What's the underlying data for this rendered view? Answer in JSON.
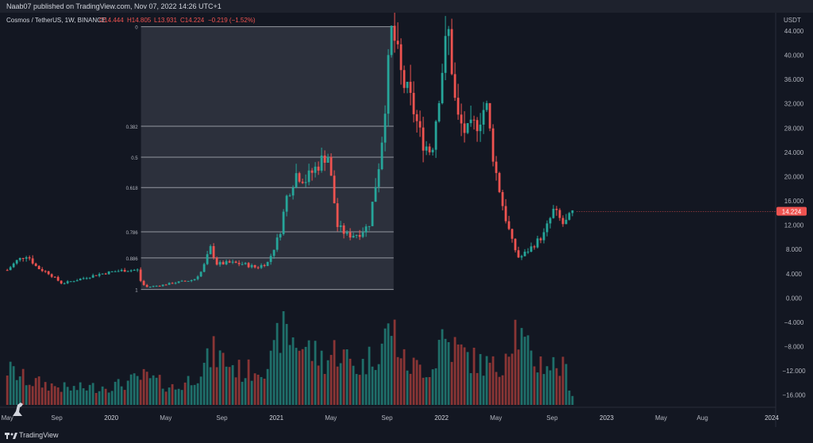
{
  "header": {
    "published": "Naab07 published on TradingView.com, Nov 07, 2022 14:26 UTC+1"
  },
  "footer": {
    "brand": "TradingView"
  },
  "colors": {
    "up": "#26a69a",
    "down": "#ef5350",
    "up_vol": "#1f6f6a",
    "down_vol": "#8a3535",
    "price_tag": "#ef5350",
    "fib_fill": "#2a2e39"
  },
  "chart_data": {
    "type": "candlestick",
    "symbol_line": {
      "symbol": "Cosmos / TetherUS, 1W, BINANCE",
      "o": "O14.444",
      "h": "H14.805",
      "l": "L13.931",
      "c": "C14.224",
      "chg": "−0.219 (−1.52%)"
    },
    "currency": "USDT",
    "last_price": 14.224,
    "last_price_label": "14.224",
    "y_axis": {
      "range": [
        -18,
        47
      ],
      "ticks": [
        44,
        40,
        36,
        32,
        28,
        24,
        20,
        16,
        12,
        8,
        4,
        0,
        -4,
        -8,
        -12,
        -16
      ],
      "tick_labels": [
        "44.000",
        "40.000",
        "36.000",
        "32.000",
        "28.000",
        "24.000",
        "20.000",
        "16.000",
        "12.000",
        "8.000",
        "4.000",
        "0.000",
        "−4.000",
        "−8.000",
        "−12.000",
        "−16.000"
      ]
    },
    "x_axis": {
      "range": [
        2019.35,
        2024.0
      ],
      "ticks": [
        {
          "x": 2019.37,
          "label": "May"
        },
        {
          "x": 2019.67,
          "label": "Sep"
        },
        {
          "x": 2020.0,
          "label": "2020"
        },
        {
          "x": 2020.33,
          "label": "May"
        },
        {
          "x": 2020.67,
          "label": "Sep"
        },
        {
          "x": 2021.0,
          "label": "2021"
        },
        {
          "x": 2021.33,
          "label": "May"
        },
        {
          "x": 2021.67,
          "label": "Sep"
        },
        {
          "x": 2022.0,
          "label": "2022"
        },
        {
          "x": 2022.33,
          "label": "May"
        },
        {
          "x": 2022.67,
          "label": "Sep"
        },
        {
          "x": 2023.0,
          "label": "2023"
        },
        {
          "x": 2023.33,
          "label": "May"
        },
        {
          "x": 2023.58,
          "label": "Aug"
        },
        {
          "x": 2024.0,
          "label": "2024"
        }
      ]
    },
    "fibonacci": {
      "x_start": 2020.18,
      "x_end": 2021.71,
      "levels": [
        {
          "ratio": "0",
          "price": 44.7
        },
        {
          "ratio": "0.382",
          "price": 28.3
        },
        {
          "ratio": "0.5",
          "price": 23.2
        },
        {
          "ratio": "0.618",
          "price": 18.2
        },
        {
          "ratio": "0.786",
          "price": 10.9
        },
        {
          "ratio": "0.886",
          "price": 6.6
        },
        {
          "ratio": "1",
          "price": 1.4
        }
      ]
    },
    "price_path": [
      {
        "x": 2019.37,
        "y": 4.6
      },
      {
        "x": 2019.43,
        "y": 6.2
      },
      {
        "x": 2019.49,
        "y": 7.1
      },
      {
        "x": 2019.55,
        "y": 5.0
      },
      {
        "x": 2019.62,
        "y": 4.1
      },
      {
        "x": 2019.7,
        "y": 2.4
      },
      {
        "x": 2019.78,
        "y": 2.9
      },
      {
        "x": 2019.86,
        "y": 3.5
      },
      {
        "x": 2019.94,
        "y": 4.0
      },
      {
        "x": 2020.02,
        "y": 4.4
      },
      {
        "x": 2020.1,
        "y": 4.6
      },
      {
        "x": 2020.16,
        "y": 4.6
      },
      {
        "x": 2020.18,
        "y": 2.6
      },
      {
        "x": 2020.21,
        "y": 1.8
      },
      {
        "x": 2020.3,
        "y": 2.1
      },
      {
        "x": 2020.4,
        "y": 2.6
      },
      {
        "x": 2020.5,
        "y": 3.0
      },
      {
        "x": 2020.55,
        "y": 4.5
      },
      {
        "x": 2020.6,
        "y": 8.3
      },
      {
        "x": 2020.64,
        "y": 5.6
      },
      {
        "x": 2020.72,
        "y": 5.8
      },
      {
        "x": 2020.8,
        "y": 5.6
      },
      {
        "x": 2020.88,
        "y": 5.0
      },
      {
        "x": 2020.95,
        "y": 5.9
      },
      {
        "x": 2021.02,
        "y": 10.6
      },
      {
        "x": 2021.06,
        "y": 16.5
      },
      {
        "x": 2021.12,
        "y": 20.5
      },
      {
        "x": 2021.18,
        "y": 19.5
      },
      {
        "x": 2021.24,
        "y": 21.5
      },
      {
        "x": 2021.31,
        "y": 24.0
      },
      {
        "x": 2021.37,
        "y": 11.8
      },
      {
        "x": 2021.43,
        "y": 10.3
      },
      {
        "x": 2021.5,
        "y": 10.6
      },
      {
        "x": 2021.56,
        "y": 12.0
      },
      {
        "x": 2021.63,
        "y": 23.6
      },
      {
        "x": 2021.7,
        "y": 44.7
      },
      {
        "x": 2021.76,
        "y": 36.0
      },
      {
        "x": 2021.82,
        "y": 32.0
      },
      {
        "x": 2021.88,
        "y": 26.0
      },
      {
        "x": 2021.94,
        "y": 24.0
      },
      {
        "x": 2022.0,
        "y": 37.0
      },
      {
        "x": 2022.04,
        "y": 44.5
      },
      {
        "x": 2022.09,
        "y": 30.0
      },
      {
        "x": 2022.15,
        "y": 27.0
      },
      {
        "x": 2022.22,
        "y": 29.0
      },
      {
        "x": 2022.27,
        "y": 32.0
      },
      {
        "x": 2022.32,
        "y": 22.0
      },
      {
        "x": 2022.38,
        "y": 14.0
      },
      {
        "x": 2022.43,
        "y": 9.0
      },
      {
        "x": 2022.47,
        "y": 6.5
      },
      {
        "x": 2022.55,
        "y": 8.5
      },
      {
        "x": 2022.62,
        "y": 10.5
      },
      {
        "x": 2022.68,
        "y": 14.5
      },
      {
        "x": 2022.74,
        "y": 12.0
      },
      {
        "x": 2022.8,
        "y": 14.2
      }
    ],
    "volume_path": [
      {
        "x": 2019.37,
        "v": 0.45
      },
      {
        "x": 2019.5,
        "v": 0.3
      },
      {
        "x": 2019.75,
        "v": 0.2
      },
      {
        "x": 2020.05,
        "v": 0.25
      },
      {
        "x": 2020.2,
        "v": 0.35
      },
      {
        "x": 2020.4,
        "v": 0.2
      },
      {
        "x": 2020.55,
        "v": 0.45
      },
      {
        "x": 2020.62,
        "v": 0.65
      },
      {
        "x": 2020.8,
        "v": 0.4
      },
      {
        "x": 2020.98,
        "v": 0.55
      },
      {
        "x": 2021.02,
        "v": 0.95
      },
      {
        "x": 2021.12,
        "v": 0.8
      },
      {
        "x": 2021.3,
        "v": 0.55
      },
      {
        "x": 2021.36,
        "v": 0.7
      },
      {
        "x": 2021.5,
        "v": 0.45
      },
      {
        "x": 2021.62,
        "v": 0.7
      },
      {
        "x": 2021.7,
        "v": 1.0
      },
      {
        "x": 2021.78,
        "v": 0.5
      },
      {
        "x": 2021.95,
        "v": 0.45
      },
      {
        "x": 2022.0,
        "v": 0.9
      },
      {
        "x": 2022.05,
        "v": 0.75
      },
      {
        "x": 2022.2,
        "v": 0.55
      },
      {
        "x": 2022.35,
        "v": 0.45
      },
      {
        "x": 2022.44,
        "v": 1.0
      },
      {
        "x": 2022.55,
        "v": 0.55
      },
      {
        "x": 2022.68,
        "v": 0.5
      },
      {
        "x": 2022.75,
        "v": 0.45
      },
      {
        "x": 2022.8,
        "v": 0.08
      }
    ]
  }
}
